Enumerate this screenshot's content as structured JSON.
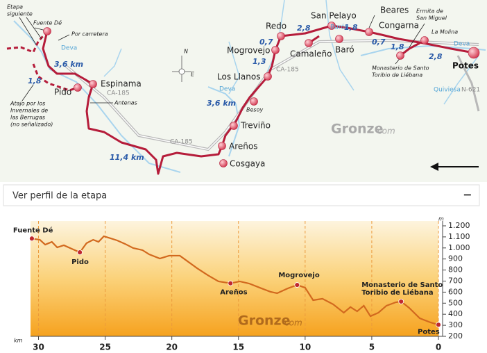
{
  "map": {
    "towns": [
      "Fuente Dé",
      "Pido",
      "Espinama",
      "Cosgaya",
      "Areños",
      "Treviño",
      "Besoy",
      "Los Llanos",
      "Mogrovejo",
      "Redo",
      "San Pelayo",
      "Camaleño",
      "Baró",
      "Beares",
      "Congarna",
      "La Molina",
      "Potes"
    ],
    "distances": [
      "3,6 km",
      "1,8",
      "11,4 km",
      "3,6 km",
      "1,3",
      "0,7",
      "2,8",
      "1,8",
      "0,7",
      "1,8",
      "2,8"
    ],
    "rivers": [
      "Deva",
      "Deva",
      "Burón",
      "Deva",
      "Quiviesa"
    ],
    "roads": [
      "CA-185",
      "CA-185",
      "CA-185",
      "N-621"
    ],
    "notes": {
      "etapa_siguiente": [
        "Etapa",
        "siguiente"
      ],
      "por_carretera": "Por carretera",
      "atajo": [
        "Atajo por los",
        "Invernales de",
        "las Berrugas",
        "(no señalizado)"
      ],
      "antenas": "Antenas",
      "ermita": [
        "Ermita de",
        "San Miguel"
      ],
      "monasterio": [
        "Monasterio de Santo",
        "Toribio de Liébana"
      ]
    },
    "compass": [
      "N",
      "E"
    ],
    "watermark": [
      "Gronze",
      "com"
    ]
  },
  "panel": {
    "title": "Ver perfil de la etapa",
    "toggle": "−"
  },
  "chart_data": {
    "type": "line",
    "x_label": "km",
    "y_label": "m",
    "color": "#d2691e",
    "x": [
      30.5,
      29.9,
      29.5,
      29.0,
      28.6,
      28.1,
      27.5,
      26.9,
      26.4,
      25.9,
      25.5,
      25.1,
      24.6,
      24.1,
      23.5,
      22.9,
      22.2,
      21.7,
      20.9,
      20.2,
      19.4,
      18.9,
      18.1,
      17.3,
      16.5,
      15.6,
      14.9,
      14.2,
      13.4,
      12.6,
      12.1,
      11.3,
      10.6,
      10.0,
      9.4,
      8.7,
      7.9,
      7.1,
      6.6,
      6.1,
      5.6,
      5.1,
      4.5,
      3.9,
      3.2,
      2.8,
      2.2,
      1.4,
      0.6,
      0
    ],
    "values": [
      1085,
      1074,
      1030,
      1055,
      1005,
      1024,
      992,
      960,
      1043,
      1074,
      1055,
      1106,
      1087,
      1068,
      1036,
      999,
      980,
      942,
      904,
      930,
      930,
      886,
      816,
      753,
      697,
      680,
      697,
      678,
      640,
      603,
      590,
      634,
      665,
      640,
      527,
      540,
      490,
      414,
      465,
      426,
      477,
      382,
      414,
      477,
      508,
      515,
      458,
      363,
      326,
      305
    ],
    "xlim": [
      30.6,
      0
    ],
    "ylim": [
      200,
      1200
    ],
    "xticks": [
      30,
      25,
      20,
      15,
      10,
      5,
      0
    ],
    "yticks": [
      {
        "value": 1200,
        "label": "1.200"
      },
      {
        "value": 1100,
        "label": "1.100"
      },
      {
        "value": 1000,
        "label": "1.000"
      },
      900,
      800,
      700,
      600,
      500,
      400,
      300,
      200
    ],
    "grid": true,
    "annotations": [
      {
        "lines": [
          "Fuente Dé"
        ],
        "x": 30.5,
        "y": 1085
      },
      {
        "lines": [
          "Pido"
        ],
        "x": 26.9,
        "y": 960
      },
      {
        "lines": [
          "Areños"
        ],
        "x": 15.6,
        "y": 680
      },
      {
        "lines": [
          "Mogrovejo"
        ],
        "x": 10.6,
        "y": 665
      },
      {
        "lines": [
          "Monasterio de Santo",
          "Toribio de Liébana"
        ],
        "x": 2.8,
        "y": 515
      },
      {
        "lines": [
          "Potes"
        ],
        "x": 0,
        "y": 305
      }
    ],
    "watermark": [
      "Gronze",
      "com"
    ]
  }
}
